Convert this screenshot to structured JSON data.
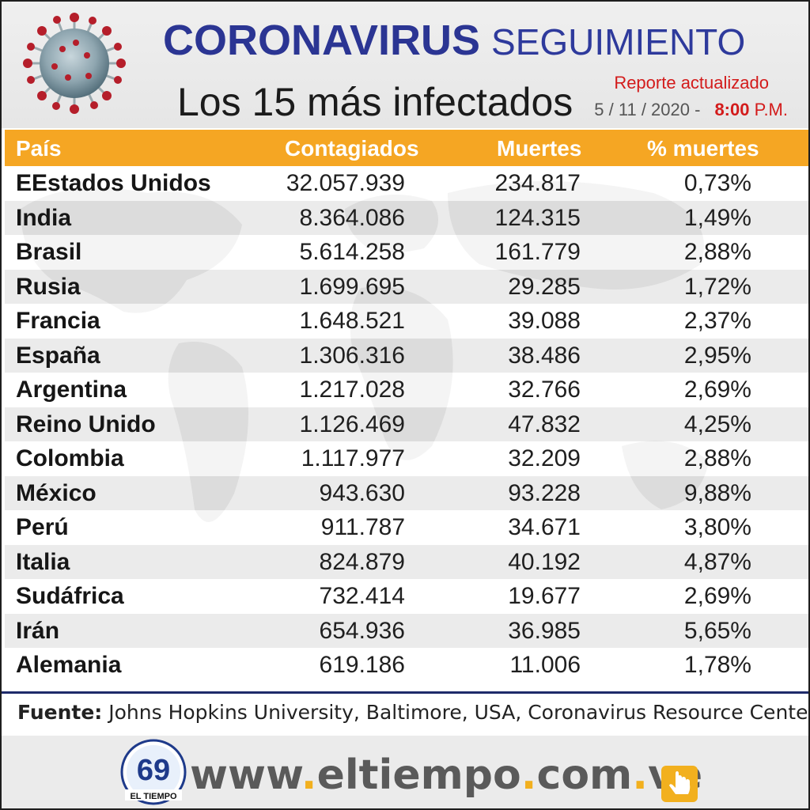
{
  "header": {
    "title_bold": "Coronavirus",
    "title_light": "SEGUIMIENTO",
    "subtitle": "Los 15 más infectados",
    "report_label": "Reporte actualizado",
    "report_date": "5 / 11 / 2020 -",
    "report_time": "8:00",
    "report_period": "P.M."
  },
  "table": {
    "headers": {
      "country": "País",
      "cases": "Contagiados",
      "deaths": "Muertes",
      "pct": "% muertes"
    },
    "rows": [
      {
        "country": "EEstados Unidos",
        "cases": "32.057.939",
        "deaths": "234.817",
        "pct": "0,73%"
      },
      {
        "country": "India",
        "cases": "8.364.086",
        "deaths": "124.315",
        "pct": "1,49%"
      },
      {
        "country": "Brasil",
        "cases": "5.614.258",
        "deaths": "161.779",
        "pct": "2,88%"
      },
      {
        "country": "Rusia",
        "cases": "1.699.695",
        "deaths": "29.285",
        "pct": "1,72%"
      },
      {
        "country": "Francia",
        "cases": "1.648.521",
        "deaths": "39.088",
        "pct": "2,37%"
      },
      {
        "country": "España",
        "cases": "1.306.316",
        "deaths": "38.486",
        "pct": "2,95%"
      },
      {
        "country": "Argentina",
        "cases": "1.217.028",
        "deaths": "32.766",
        "pct": "2,69%"
      },
      {
        "country": "Reino Unido",
        "cases": "1.126.469",
        "deaths": "47.832",
        "pct": "4,25%"
      },
      {
        "country": "Colombia",
        "cases": "1.117.977",
        "deaths": "32.209",
        "pct": "2,88%"
      },
      {
        "country": "México",
        "cases": "943.630",
        "deaths": "93.228",
        "pct": "9,88%"
      },
      {
        "country": "Perú",
        "cases": "911.787",
        "deaths": "34.671",
        "pct": "3,80%"
      },
      {
        "country": "Italia",
        "cases": "824.879",
        "deaths": "40.192",
        "pct": "4,87%"
      },
      {
        "country": "Sudáfrica",
        "cases": "732.414",
        "deaths": "19.677",
        "pct": "2,69%"
      },
      {
        "country": "Irán",
        "cases": "654.936",
        "deaths": "36.985",
        "pct": "5,65%"
      },
      {
        "country": "Alemania",
        "cases": "619.186",
        "deaths": "11.006",
        "pct": "1,78%"
      }
    ]
  },
  "source": {
    "label": "Fuente:",
    "text": "Johns Hopkins University, Baltimore, USA, Coronavirus Resource Center"
  },
  "footer": {
    "logo_text": "EL TIEMPO",
    "logo_number": "69",
    "url_parts": [
      "www",
      ".",
      "eltiempo",
      ".",
      "com",
      ".",
      "ve"
    ]
  },
  "icons": {
    "virus": "coronavirus-icon",
    "hand": "pointing-hand-icon"
  },
  "colors": {
    "title_blue": "#2b3593",
    "header_orange": "#f5a623",
    "accent_red": "#d31b1b",
    "url_dot_yellow": "#f2b01e"
  }
}
